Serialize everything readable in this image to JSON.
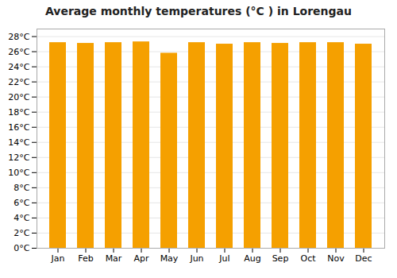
{
  "chart_data": {
    "type": "bar",
    "title": "Average monthly temperatures (°C ) in Lorengau",
    "categories": [
      "Jan",
      "Feb",
      "Mar",
      "Apr",
      "May",
      "Jun",
      "Jul",
      "Aug",
      "Sep",
      "Oct",
      "Nov",
      "Dec"
    ],
    "values": [
      27.2,
      27.1,
      27.2,
      27.3,
      25.8,
      27.2,
      27.0,
      27.2,
      27.1,
      27.2,
      27.2,
      27.0
    ],
    "color": "#F5A000",
    "ylim": [
      0,
      29
    ],
    "yticks": [
      {
        "value": 0,
        "label": "0°C"
      },
      {
        "value": 2,
        "label": "2°C"
      },
      {
        "value": 4,
        "label": "4°C"
      },
      {
        "value": 6,
        "label": "6°C"
      },
      {
        "value": 8,
        "label": "8°C"
      },
      {
        "value": 10,
        "label": "10°C"
      },
      {
        "value": 12,
        "label": "12°C"
      },
      {
        "value": 14,
        "label": "14°C"
      },
      {
        "value": 16,
        "label": "16°C"
      },
      {
        "value": 18,
        "label": "18°C"
      },
      {
        "value": 20,
        "label": "20°C"
      },
      {
        "value": 22,
        "label": "22°C"
      },
      {
        "value": 24,
        "label": "24°C"
      },
      {
        "value": 26,
        "label": "26°C"
      },
      {
        "value": 28,
        "label": "28°C"
      }
    ],
    "grid": true
  }
}
